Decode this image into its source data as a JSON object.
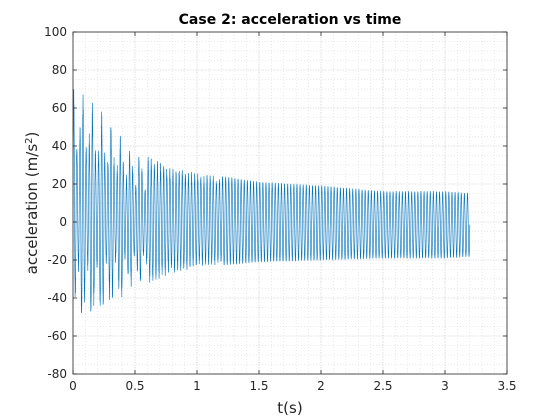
{
  "chart_data": {
    "type": "line",
    "title": "Case 2: acceleration vs time",
    "xlabel": "t(s)",
    "ylabel_base": "acceleration (m/s",
    "ylabel_sup": "2",
    "ylabel_close": ")",
    "xlim": [
      0,
      3.5
    ],
    "ylim": [
      -80,
      100
    ],
    "xticks": [
      0,
      0.5,
      1,
      1.5,
      2,
      2.5,
      3,
      3.5
    ],
    "xtick_labels": [
      "0",
      "0.5",
      "1",
      "1.5",
      "2",
      "2.5",
      "3",
      "3.5"
    ],
    "yticks": [
      -80,
      -60,
      -40,
      -20,
      0,
      20,
      40,
      60,
      80,
      100
    ],
    "ytick_labels": [
      "-80",
      "-60",
      "-40",
      "-20",
      "0",
      "20",
      "40",
      "60",
      "80",
      "100"
    ],
    "grid": "major and minor (dotted)",
    "series": [
      {
        "name": "acceleration",
        "color": "#0072BD",
        "signal": {
          "description": "decaying oscillation settling to steady amplitude",
          "t_start": 0,
          "t_end": 3.2,
          "frequency_hz": 40,
          "mean_offset": -1.5,
          "initial_amplitude": 75,
          "steady_amplitude": 17,
          "decay_time_constant_s": 0.35,
          "samples": [
            {
              "t": 0.0,
              "max": 75,
              "min": -60
            },
            {
              "t": 0.25,
              "max": 58,
              "min": -52
            },
            {
              "t": 0.5,
              "max": 39,
              "min": -37
            },
            {
              "t": 0.75,
              "max": 30,
              "min": -28
            },
            {
              "t": 1.0,
              "max": 26,
              "min": -24
            },
            {
              "t": 1.5,
              "max": 21,
              "min": -21
            },
            {
              "t": 2.0,
              "max": 19,
              "min": -20
            },
            {
              "t": 2.5,
              "max": 16,
              "min": -19
            },
            {
              "t": 3.0,
              "max": 16,
              "min": -19
            },
            {
              "t": 3.2,
              "max": 15,
              "min": -18
            }
          ]
        }
      }
    ]
  }
}
